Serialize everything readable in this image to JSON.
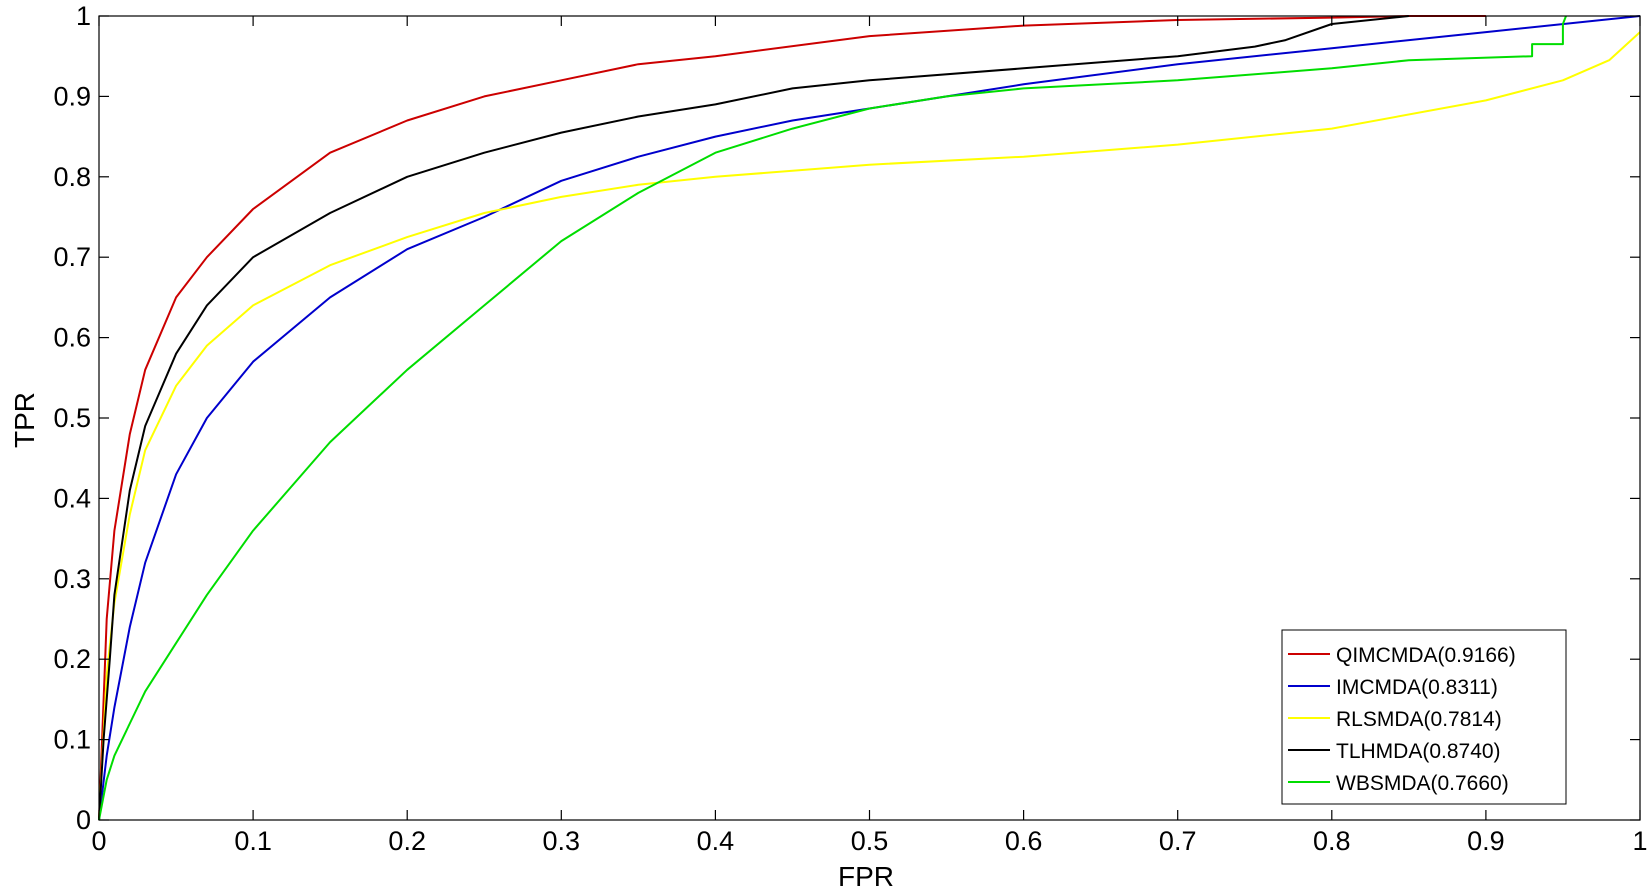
{
  "chart_data": {
    "type": "line",
    "title": "",
    "xlabel": "FPR",
    "ylabel": "TPR",
    "xlim": [
      0,
      1
    ],
    "ylim": [
      0,
      1
    ],
    "xticks": [
      "0",
      "0.1",
      "0.2",
      "0.3",
      "0.4",
      "0.5",
      "0.6",
      "0.7",
      "0.8",
      "0.9",
      "1"
    ],
    "yticks": [
      "0",
      "0.1",
      "0.2",
      "0.3",
      "0.4",
      "0.5",
      "0.6",
      "0.7",
      "0.8",
      "0.9",
      "1"
    ],
    "grid": false,
    "legend_position": "bottom-right",
    "series": [
      {
        "name": "QIMCMDA(0.9166)",
        "color": "#cc0000",
        "x": [
          0,
          0.002,
          0.005,
          0.01,
          0.02,
          0.03,
          0.05,
          0.07,
          0.1,
          0.15,
          0.2,
          0.25,
          0.3,
          0.35,
          0.4,
          0.5,
          0.6,
          0.7,
          0.8,
          0.85,
          0.9
        ],
        "y": [
          0,
          0.1,
          0.25,
          0.36,
          0.48,
          0.56,
          0.65,
          0.7,
          0.76,
          0.83,
          0.87,
          0.9,
          0.92,
          0.94,
          0.95,
          0.975,
          0.988,
          0.995,
          0.998,
          1.0,
          1.0
        ]
      },
      {
        "name": "IMCMDA(0.8311)",
        "color": "#0000cc",
        "x": [
          0,
          0.005,
          0.01,
          0.02,
          0.03,
          0.05,
          0.07,
          0.1,
          0.15,
          0.2,
          0.25,
          0.3,
          0.35,
          0.4,
          0.45,
          0.5,
          0.6,
          0.7,
          0.8,
          0.9,
          1.0
        ],
        "y": [
          0,
          0.08,
          0.14,
          0.24,
          0.32,
          0.43,
          0.5,
          0.57,
          0.65,
          0.71,
          0.75,
          0.795,
          0.825,
          0.85,
          0.87,
          0.885,
          0.915,
          0.94,
          0.96,
          0.98,
          1.0
        ]
      },
      {
        "name": "RLSMDA(0.7814)",
        "color": "#ffff00",
        "x": [
          0,
          0.005,
          0.01,
          0.02,
          0.03,
          0.05,
          0.07,
          0.1,
          0.15,
          0.2,
          0.25,
          0.3,
          0.35,
          0.4,
          0.5,
          0.6,
          0.7,
          0.8,
          0.9,
          0.95,
          0.98,
          1.0
        ],
        "y": [
          0,
          0.18,
          0.27,
          0.38,
          0.46,
          0.54,
          0.59,
          0.64,
          0.69,
          0.725,
          0.755,
          0.775,
          0.79,
          0.8,
          0.815,
          0.825,
          0.84,
          0.86,
          0.895,
          0.92,
          0.945,
          0.98
        ]
      },
      {
        "name": "TLHMDA(0.8740)",
        "color": "#000000",
        "x": [
          0,
          0.003,
          0.007,
          0.01,
          0.02,
          0.03,
          0.05,
          0.07,
          0.1,
          0.15,
          0.2,
          0.25,
          0.3,
          0.35,
          0.4,
          0.45,
          0.5,
          0.6,
          0.7,
          0.75,
          0.77,
          0.8,
          0.85
        ],
        "y": [
          0,
          0.1,
          0.2,
          0.28,
          0.41,
          0.49,
          0.58,
          0.64,
          0.7,
          0.755,
          0.8,
          0.83,
          0.855,
          0.875,
          0.89,
          0.91,
          0.92,
          0.935,
          0.95,
          0.962,
          0.97,
          0.99,
          1.0
        ]
      },
      {
        "name": "WBSMDA(0.7660)",
        "color": "#00dd00",
        "x": [
          0,
          0.005,
          0.01,
          0.02,
          0.03,
          0.05,
          0.07,
          0.1,
          0.15,
          0.2,
          0.25,
          0.3,
          0.35,
          0.4,
          0.45,
          0.5,
          0.55,
          0.6,
          0.7,
          0.8,
          0.85,
          0.93,
          0.93,
          0.95,
          0.95,
          0.952
        ],
        "y": [
          0,
          0.05,
          0.08,
          0.12,
          0.16,
          0.22,
          0.28,
          0.36,
          0.47,
          0.56,
          0.64,
          0.72,
          0.78,
          0.83,
          0.86,
          0.885,
          0.9,
          0.91,
          0.92,
          0.935,
          0.945,
          0.95,
          0.965,
          0.965,
          0.99,
          1.0
        ]
      }
    ]
  }
}
